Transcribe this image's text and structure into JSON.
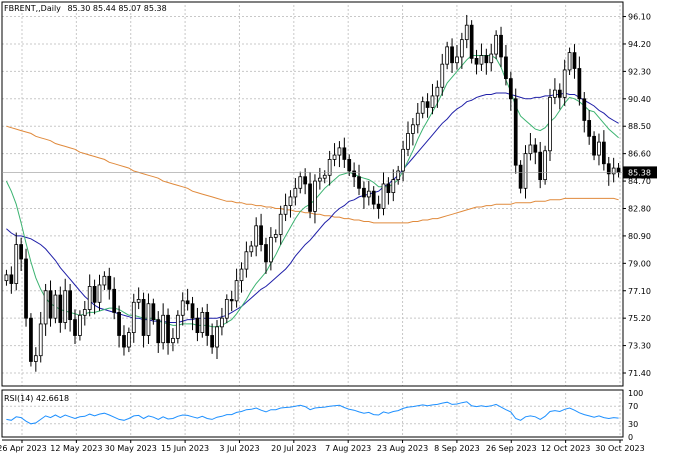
{
  "header": {
    "symbol": "FBRENT,,Daily",
    "ohlc": "85.30 85.44 85.07 85.38"
  },
  "rsi": {
    "label": "RSI(14) 42.6618",
    "levels": [
      100,
      70,
      30,
      0
    ]
  },
  "last_price_tag": "85.38",
  "colors": {
    "bull": "#ffffff",
    "bear": "#000000",
    "ma_fast": "#3cb371",
    "ma_mid": "#1f1fa8",
    "ma_slow": "#e08a3c",
    "rsi_line": "#1e90ff",
    "grid": "#c8c8c8"
  },
  "chart_data": {
    "type": "candlestick",
    "ylim": [
      70.5,
      96.9
    ],
    "yticks": [
      "96.10",
      "94.20",
      "92.30",
      "90.40",
      "88.50",
      "86.60",
      "84.70",
      "82.80",
      "80.90",
      "79.00",
      "77.10",
      "75.20",
      "73.30",
      "71.40"
    ],
    "xticks": [
      "26 Apr 2023",
      "12 May 2023",
      "30 May 2023",
      "15 Jun 2023",
      "3 Jul 2023",
      "20 Jul 2023",
      "7 Aug 2023",
      "23 Aug 2023",
      "8 Sep 2023",
      "26 Sep 2023",
      "12 Oct 2023",
      "30 Oct 2023"
    ],
    "grid": true,
    "closes": [
      78.2,
      77.6,
      80.3,
      79.3,
      75.2,
      72.2,
      72.6,
      74.8,
      77.1,
      75.2,
      76.8,
      74.9,
      77.1,
      75.1,
      74.0,
      75.4,
      75.8,
      77.4,
      76.3,
      77.5,
      78.1,
      77.2,
      75.6,
      74.0,
      73.2,
      74.2,
      76.3,
      76.5,
      74.0,
      76.2,
      75.1,
      73.5,
      75.4,
      73.5,
      73.8,
      75.4,
      76.4,
      76.2,
      75.2,
      74.2,
      75.6,
      74.0,
      73.2,
      74.6,
      75.2,
      76.5,
      76.4,
      77.8,
      78.6,
      79.8,
      80.2,
      81.6,
      80.3,
      79.1,
      80.8,
      81.0,
      82.4,
      83.0,
      83.6,
      84.2,
      85.0,
      84.5,
      82.6,
      84.7,
      84.9,
      85.1,
      86.2,
      86.5,
      87.0,
      86.2,
      85.4,
      85.0,
      84.2,
      83.6,
      84.0,
      83.1,
      82.8,
      84.5,
      83.9,
      84.8,
      85.4,
      86.9,
      88.0,
      88.6,
      89.4,
      90.2,
      89.8,
      90.6,
      91.2,
      92.8,
      94.0,
      92.9,
      93.3,
      94.5,
      95.5,
      93.2,
      92.8,
      93.4,
      92.9,
      93.5,
      94.8,
      93.3,
      91.8,
      90.4,
      85.8,
      84.2,
      86.6,
      87.2,
      86.7,
      84.8,
      86.8,
      90.5,
      91.0,
      90.5,
      92.4,
      93.6,
      92.5,
      90.4,
      88.9,
      87.8,
      86.5,
      87.4,
      85.9,
      85.2,
      85.6,
      85.3
    ],
    "ma_fast": [
      84.7,
      84.0,
      83.1,
      81.8,
      80.4,
      79.1,
      78.0,
      77.2,
      76.6,
      76.2,
      76.0,
      75.8,
      75.7,
      75.6,
      75.5,
      75.4,
      75.5,
      75.6,
      75.6,
      75.7,
      75.8,
      75.9,
      75.9,
      75.8,
      75.6,
      75.4,
      75.4,
      75.3,
      75.2,
      75.2,
      75.2,
      75.0,
      74.9,
      74.8,
      74.7,
      74.7,
      74.8,
      74.8,
      74.8,
      74.7,
      74.7,
      74.7,
      74.6,
      74.6,
      74.7,
      74.9,
      75.1,
      75.5,
      76.0,
      76.5,
      77.1,
      77.6,
      78.0,
      78.4,
      79.0,
      79.6,
      80.3,
      80.9,
      81.5,
      82.1,
      82.6,
      82.9,
      83.1,
      83.4,
      83.8,
      84.2,
      84.5,
      84.8,
      85.1,
      85.2,
      85.3,
      85.2,
      85.0,
      84.9,
      84.8,
      84.6,
      84.3,
      84.3,
      84.3,
      84.5,
      84.8,
      85.4,
      86.1,
      86.8,
      87.6,
      88.3,
      88.9,
      89.5,
      90.1,
      90.8,
      91.5,
      91.9,
      92.3,
      92.7,
      93.1,
      93.4,
      93.4,
      93.4,
      93.4,
      93.4,
      93.2,
      92.6,
      91.7,
      90.9,
      89.9,
      89.2,
      88.9,
      88.6,
      88.3,
      88.2,
      88.4,
      88.8,
      89.1,
      89.6,
      90.1,
      90.5,
      90.4,
      90.2,
      89.9,
      89.6,
      89.5,
      89.1,
      88.7,
      88.3,
      88.0,
      87.7
    ],
    "ma_mid": [
      81.4,
      81.1,
      80.9,
      80.9,
      80.8,
      80.7,
      80.5,
      80.3,
      80.0,
      79.6,
      79.2,
      78.7,
      78.3,
      77.9,
      77.5,
      77.1,
      76.7,
      76.4,
      76.1,
      75.9,
      75.8,
      75.7,
      75.6,
      75.5,
      75.4,
      75.3,
      75.2,
      75.2,
      75.1,
      75.1,
      75.0,
      75.0,
      75.0,
      74.9,
      74.9,
      74.9,
      75.0,
      75.1,
      75.1,
      75.2,
      75.2,
      75.2,
      75.2,
      75.2,
      75.3,
      75.4,
      75.6,
      75.8,
      76.0,
      76.3,
      76.6,
      76.9,
      77.2,
      77.4,
      77.7,
      78.0,
      78.3,
      78.6,
      79.0,
      79.5,
      79.9,
      80.3,
      80.6,
      81.0,
      81.4,
      81.8,
      82.1,
      82.5,
      82.8,
      83.0,
      83.3,
      83.4,
      83.6,
      83.7,
      83.8,
      83.9,
      84.0,
      84.3,
      84.5,
      84.8,
      85.1,
      85.5,
      85.9,
      86.3,
      86.7,
      87.1,
      87.5,
      87.9,
      88.3,
      88.7,
      89.0,
      89.4,
      89.7,
      89.9,
      90.2,
      90.3,
      90.5,
      90.6,
      90.7,
      90.7,
      90.8,
      90.8,
      90.8,
      90.7,
      90.6,
      90.5,
      90.4,
      90.4,
      90.5,
      90.5,
      90.6,
      90.6,
      90.7,
      90.7,
      90.8,
      90.7,
      90.7,
      90.5,
      90.3,
      90.1,
      89.9,
      89.6,
      89.4,
      89.1,
      88.9,
      88.7
    ],
    "ma_slow": [
      88.5,
      88.4,
      88.3,
      88.2,
      88.1,
      88.0,
      87.8,
      87.7,
      87.6,
      87.5,
      87.3,
      87.2,
      87.1,
      87.0,
      86.9,
      86.7,
      86.6,
      86.5,
      86.4,
      86.3,
      86.2,
      86.0,
      85.9,
      85.8,
      85.7,
      85.6,
      85.4,
      85.3,
      85.2,
      85.1,
      85.0,
      84.9,
      84.7,
      84.6,
      84.5,
      84.4,
      84.3,
      84.2,
      84.0,
      83.9,
      83.8,
      83.7,
      83.6,
      83.5,
      83.4,
      83.3,
      83.3,
      83.2,
      83.2,
      83.1,
      83.1,
      83.0,
      83.0,
      82.9,
      82.9,
      82.8,
      82.8,
      82.7,
      82.7,
      82.6,
      82.6,
      82.5,
      82.5,
      82.4,
      82.4,
      82.3,
      82.3,
      82.2,
      82.2,
      82.1,
      82.1,
      82.0,
      82.0,
      81.9,
      81.9,
      81.8,
      81.8,
      81.8,
      81.8,
      81.8,
      81.8,
      81.8,
      81.8,
      81.9,
      81.9,
      82.0,
      82.0,
      82.1,
      82.1,
      82.2,
      82.3,
      82.4,
      82.5,
      82.6,
      82.7,
      82.8,
      82.9,
      82.9,
      83.0,
      83.0,
      83.1,
      83.1,
      83.1,
      83.1,
      83.2,
      83.2,
      83.2,
      83.2,
      83.3,
      83.3,
      83.3,
      83.4,
      83.4,
      83.4,
      83.5,
      83.5,
      83.5,
      83.5,
      83.5,
      83.5,
      83.5,
      83.5,
      83.5,
      83.5,
      83.5,
      83.4
    ],
    "rsi_values": [
      40,
      38,
      46,
      44,
      36,
      30,
      32,
      40,
      48,
      44,
      50,
      44,
      50,
      46,
      42,
      46,
      47,
      52,
      48,
      52,
      54,
      50,
      45,
      40,
      38,
      42,
      48,
      49,
      42,
      48,
      45,
      40,
      46,
      41,
      42,
      47,
      50,
      49,
      46,
      43,
      47,
      42,
      40,
      45,
      47,
      51,
      51,
      56,
      58,
      62,
      63,
      66,
      61,
      57,
      62,
      62,
      66,
      67,
      68,
      70,
      72,
      69,
      62,
      66,
      67,
      68,
      70,
      71,
      72,
      67,
      63,
      61,
      57,
      54,
      56,
      51,
      50,
      57,
      54,
      58,
      60,
      65,
      68,
      69,
      71,
      73,
      71,
      73,
      74,
      77,
      79,
      74,
      75,
      78,
      80,
      71,
      69,
      71,
      69,
      71,
      74,
      68,
      62,
      57,
      42,
      38,
      46,
      48,
      46,
      40,
      47,
      58,
      60,
      58,
      63,
      66,
      61,
      55,
      51,
      48,
      45,
      48,
      44,
      42,
      44,
      43
    ]
  }
}
